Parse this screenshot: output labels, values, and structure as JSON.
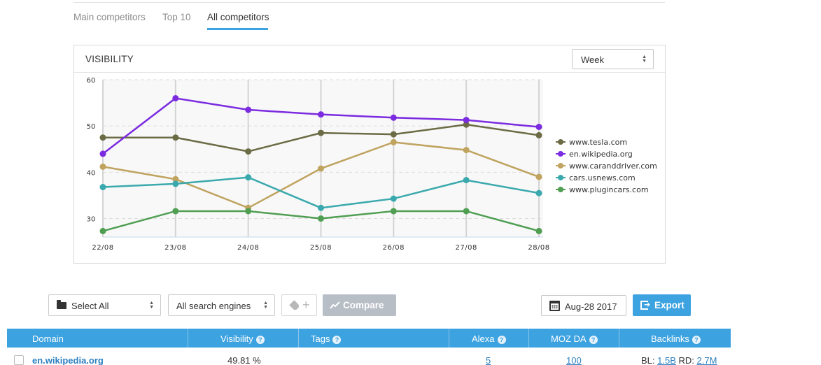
{
  "tabs": [
    {
      "label": "Main competitors"
    },
    {
      "label": "Top 10"
    },
    {
      "label": "All competitors",
      "active": true
    }
  ],
  "panel": {
    "title": "VISIBILITY",
    "period_select": "Week"
  },
  "chart_data": {
    "type": "line",
    "title": "",
    "xlabel": "",
    "ylabel": "",
    "x": [
      "22/08",
      "23/08",
      "24/08",
      "25/08",
      "26/08",
      "27/08",
      "28/08"
    ],
    "ylim": [
      26,
      60
    ],
    "yticks": [
      30,
      40,
      50,
      60
    ],
    "grid": true,
    "legend_position": "right",
    "series": [
      {
        "name": "www.tesla.com",
        "color": "#6b6b45",
        "values": [
          47.5,
          47.5,
          44.5,
          48.5,
          48.2,
          50.3,
          48.0
        ]
      },
      {
        "name": "en.wikipedia.org",
        "color": "#7b2be0",
        "values": [
          44.0,
          56.0,
          53.5,
          52.5,
          51.8,
          51.3,
          49.8
        ]
      },
      {
        "name": "www.caranddriver.com",
        "color": "#bfa35f",
        "values": [
          41.2,
          38.5,
          32.3,
          40.8,
          46.5,
          44.8,
          39.0
        ]
      },
      {
        "name": "cars.usnews.com",
        "color": "#3aa9ad",
        "values": [
          36.8,
          37.5,
          38.9,
          32.3,
          34.3,
          38.3,
          35.5
        ]
      },
      {
        "name": "www.plugincars.com",
        "color": "#4f9e52",
        "values": [
          27.3,
          31.6,
          31.6,
          30.0,
          31.6,
          31.6,
          27.3
        ]
      }
    ]
  },
  "toolbar": {
    "select_all": "Select All",
    "search_engines": "All search engines",
    "tag_plus": "+",
    "compare": "Compare",
    "date": "Aug-28 2017",
    "export": "Export"
  },
  "table": {
    "columns": [
      "Domain",
      "Visibility",
      "Tags",
      "Alexa",
      "MOZ DA",
      "Backlinks"
    ],
    "help_glyph": "?",
    "rows": [
      {
        "domain": "en.wikipedia.org",
        "visibility": "49.81 %",
        "tags": "",
        "alexa": "5",
        "moz_da": "100",
        "bl_label": "BL:",
        "bl": "1.5B",
        "rd_label": "RD:",
        "rd": "2.7M"
      }
    ]
  },
  "colors": {
    "accent": "#3ca2e0",
    "compare_disabled": "#b8bec6"
  }
}
